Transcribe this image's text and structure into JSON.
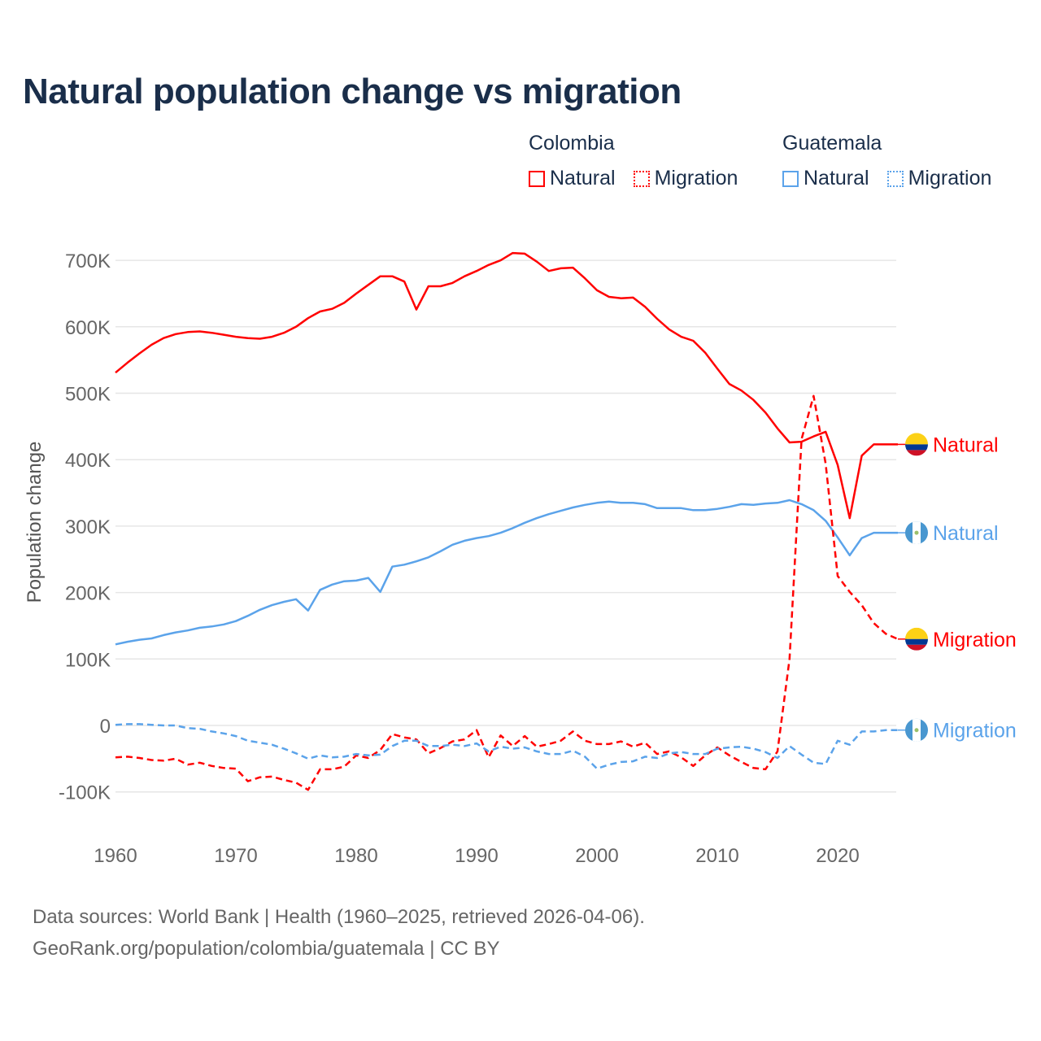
{
  "title": "Natural population change vs migration",
  "legend": [
    {
      "country": "Colombia",
      "color": "#ff0000",
      "items": [
        "Natural",
        "Migration"
      ]
    },
    {
      "country": "Guatemala",
      "color": "#5ba3ea",
      "items": [
        "Natural",
        "Migration"
      ]
    }
  ],
  "source": {
    "line1": "Data sources: World Bank | Health (1960–2025, retrieved 2026-04-06).",
    "line2": "GeoRank.org/population/colombia/guatemala | CC BY"
  },
  "chart_data": {
    "type": "line",
    "title": "Natural population change vs migration",
    "xlabel": "",
    "ylabel": "Population change",
    "xlim": [
      1960,
      2025
    ],
    "ylim": [
      -150000,
      720000
    ],
    "x_ticks": [
      "1960",
      "1970",
      "1980",
      "1990",
      "2000",
      "2010",
      "2020"
    ],
    "y_ticks": [
      {
        "v": -100000,
        "label": "-100K"
      },
      {
        "v": 0,
        "label": "0"
      },
      {
        "v": 100000,
        "label": "100K"
      },
      {
        "v": 200000,
        "label": "200K"
      },
      {
        "v": 300000,
        "label": "300K"
      },
      {
        "v": 400000,
        "label": "400K"
      },
      {
        "v": 500000,
        "label": "500K"
      },
      {
        "v": 600000,
        "label": "600K"
      },
      {
        "v": 700000,
        "label": "700K"
      }
    ],
    "start_year": 1960,
    "series": [
      {
        "name": "Colombia Natural",
        "end_label": "Natural",
        "flag": "colombia",
        "color": "#ff0000",
        "dash": false,
        "values_k": [
          531,
          546,
          560,
          573,
          583,
          589,
          592,
          593,
          591,
          588,
          585,
          583,
          582,
          585,
          591,
          600,
          613,
          623,
          627,
          636,
          650,
          663,
          676,
          676,
          668,
          626,
          661,
          661,
          666,
          676,
          684,
          693,
          700,
          711,
          710,
          698,
          684,
          688,
          689,
          673,
          655,
          645,
          643,
          644,
          630,
          612,
          596,
          585,
          579,
          561,
          537,
          514,
          504,
          490,
          471,
          447,
          426,
          427,
          435,
          442,
          392,
          312,
          406,
          423,
          423,
          423
        ]
      },
      {
        "name": "Guatemala Natural",
        "end_label": "Natural",
        "flag": "guatemala",
        "color": "#5ba3ea",
        "dash": false,
        "values_k": [
          122,
          126,
          129,
          131,
          136,
          140,
          143,
          147,
          149,
          152,
          157,
          165,
          174,
          181,
          186,
          190,
          173,
          204,
          212,
          217,
          218,
          222,
          201,
          239,
          242,
          247,
          253,
          262,
          272,
          278,
          282,
          285,
          290,
          297,
          305,
          312,
          318,
          323,
          328,
          332,
          335,
          337,
          335,
          335,
          333,
          327,
          327,
          327,
          324,
          324,
          326,
          329,
          333,
          332,
          334,
          335,
          339,
          333,
          324,
          308,
          283,
          256,
          282,
          290,
          290,
          290
        ]
      },
      {
        "name": "Colombia Migration",
        "end_label": "Migration",
        "flag": "colombia",
        "color": "#ff0000",
        "dash": true,
        "values_k": [
          -48,
          -47,
          -49,
          -52,
          -53,
          -50,
          -59,
          -56,
          -61,
          -64,
          -65,
          -84,
          -78,
          -77,
          -82,
          -86,
          -97,
          -66,
          -66,
          -62,
          -45,
          -49,
          -37,
          -13,
          -18,
          -21,
          -42,
          -34,
          -24,
          -21,
          -7,
          -48,
          -15,
          -31,
          -16,
          -32,
          -28,
          -23,
          -9,
          -23,
          -28,
          -28,
          -24,
          -32,
          -26,
          -43,
          -39,
          -48,
          -61,
          -45,
          -33,
          -45,
          -55,
          -64,
          -66,
          -39,
          100,
          431,
          496,
          394,
          225,
          201,
          181,
          154,
          138,
          130
        ]
      },
      {
        "name": "Guatemala Migration",
        "end_label": "Migration",
        "flag": "guatemala",
        "color": "#5ba3ea",
        "dash": true,
        "values_k": [
          1,
          2,
          2,
          1,
          0,
          0,
          -4,
          -5,
          -9,
          -12,
          -16,
          -23,
          -26,
          -29,
          -35,
          -42,
          -50,
          -45,
          -48,
          -47,
          -43,
          -45,
          -44,
          -31,
          -23,
          -23,
          -31,
          -31,
          -29,
          -31,
          -27,
          -39,
          -32,
          -35,
          -33,
          -39,
          -43,
          -43,
          -38,
          -47,
          -65,
          -59,
          -55,
          -54,
          -47,
          -49,
          -42,
          -40,
          -43,
          -43,
          -35,
          -33,
          -32,
          -35,
          -40,
          -49,
          -31,
          -44,
          -56,
          -58,
          -23,
          -29,
          -9,
          -9,
          -7,
          -7
        ]
      }
    ]
  }
}
